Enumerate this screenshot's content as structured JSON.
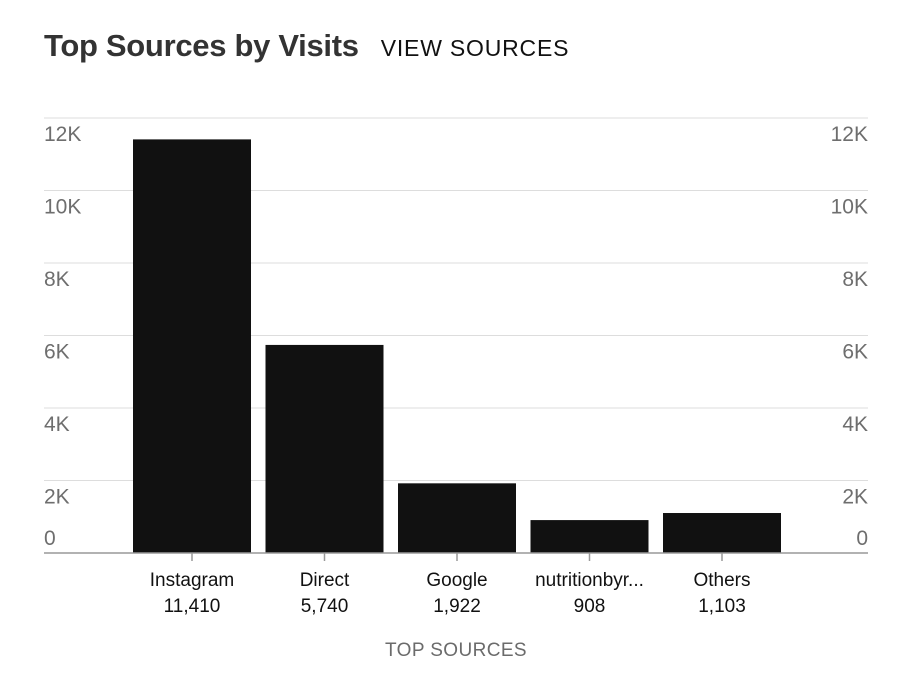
{
  "header": {
    "title": "Top Sources by Visits",
    "link_label": "VIEW SOURCES"
  },
  "colors": {
    "bar": "#111111",
    "grid": "#dddddd",
    "axis": "#999999"
  },
  "chart_data": {
    "type": "bar",
    "title": "Top Sources by Visits",
    "xlabel": "TOP SOURCES",
    "ylabel": "",
    "categories": [
      "Instagram",
      "Direct",
      "Google",
      "nutritionbyr...",
      "Others"
    ],
    "value_labels": [
      "11,410",
      "5,740",
      "1,922",
      "908",
      "1,103"
    ],
    "values": [
      11410,
      5740,
      1922,
      908,
      1103
    ],
    "ylim": [
      0,
      12000
    ],
    "yticks": [
      0,
      2000,
      4000,
      6000,
      8000,
      10000,
      12000
    ],
    "ytick_labels": [
      "0",
      "2K",
      "4K",
      "6K",
      "8K",
      "10K",
      "12K"
    ],
    "grid": true,
    "legend": "none"
  }
}
